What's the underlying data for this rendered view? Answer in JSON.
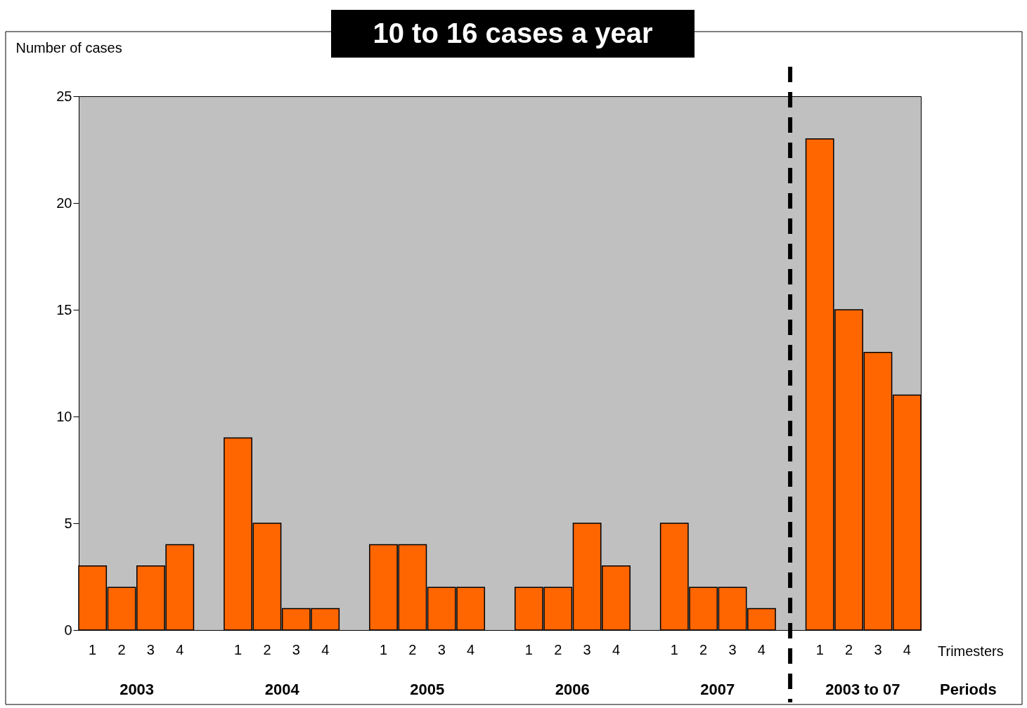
{
  "chart_data": {
    "type": "bar",
    "title": "10 to 16 cases a year",
    "ylabel": "Number of cases",
    "xlabel": "Trimesters",
    "categories": [
      "1",
      "2",
      "3",
      "4",
      null,
      "1",
      "2",
      "3",
      "4",
      null,
      "1",
      "2",
      "3",
      "4",
      null,
      "1",
      "2",
      "3",
      "4",
      null,
      "1",
      "2",
      "3",
      "4",
      null,
      "1",
      "2",
      "3",
      "4"
    ],
    "series": [
      {
        "color": "#ff6600",
        "values": [
          3,
          2,
          3,
          4,
          null,
          9,
          5,
          1,
          1,
          null,
          4,
          4,
          2,
          2,
          null,
          2,
          2,
          5,
          3,
          null,
          5,
          2,
          2,
          1,
          null,
          23,
          15,
          13,
          11
        ]
      }
    ],
    "ylim": [
      0,
      25
    ],
    "yticks": [
      0,
      5,
      10,
      15,
      20,
      25
    ],
    "ref_lines": [
      {
        "axis": "x",
        "value": null,
        "color": "#000000",
        "line_style": "dashed"
      }
    ],
    "annotations": [
      "2003",
      "2004",
      "2005",
      "2006",
      "2007",
      "2003 to 07",
      "Periods"
    ]
  }
}
